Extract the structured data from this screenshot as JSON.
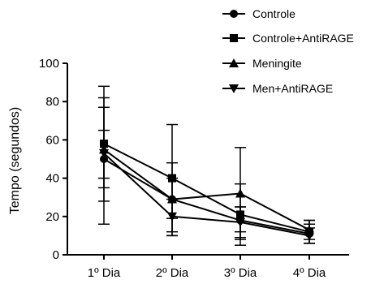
{
  "chart_data": {
    "type": "line",
    "title": "",
    "xlabel": "",
    "ylabel": "Tempo (segundos)",
    "categories": [
      "1º Dia",
      "2º Dia",
      "3º Dia",
      "4º Dia"
    ],
    "ylim": [
      0,
      100
    ],
    "yticks": [
      0,
      20,
      40,
      60,
      80,
      100
    ],
    "grid": false,
    "legend_position": "top-right",
    "series": [
      {
        "name": "Controle",
        "marker": "circle",
        "values": [
          50,
          29,
          18,
          11
        ],
        "err_low": [
          35,
          19,
          12,
          6
        ],
        "err_high": [
          65,
          40,
          25,
          16
        ]
      },
      {
        "name": "Controle+AntiRAGE",
        "marker": "square",
        "values": [
          58,
          40,
          21,
          12
        ],
        "err_low": [
          28,
          12,
          5,
          6
        ],
        "err_high": [
          88,
          68,
          37,
          18
        ]
      },
      {
        "name": "Meningite",
        "marker": "triangle-up",
        "values": [
          55,
          29,
          32,
          13
        ],
        "err_low": [
          16,
          10,
          8,
          8
        ],
        "err_high": [
          82,
          48,
          56,
          18
        ]
      },
      {
        "name": "Men+AntiRAGE",
        "marker": "triangle-down",
        "values": [
          53,
          20,
          17,
          10
        ],
        "err_low": [
          40,
          10,
          9,
          6
        ],
        "err_high": [
          77,
          29,
          25,
          14
        ]
      }
    ]
  }
}
